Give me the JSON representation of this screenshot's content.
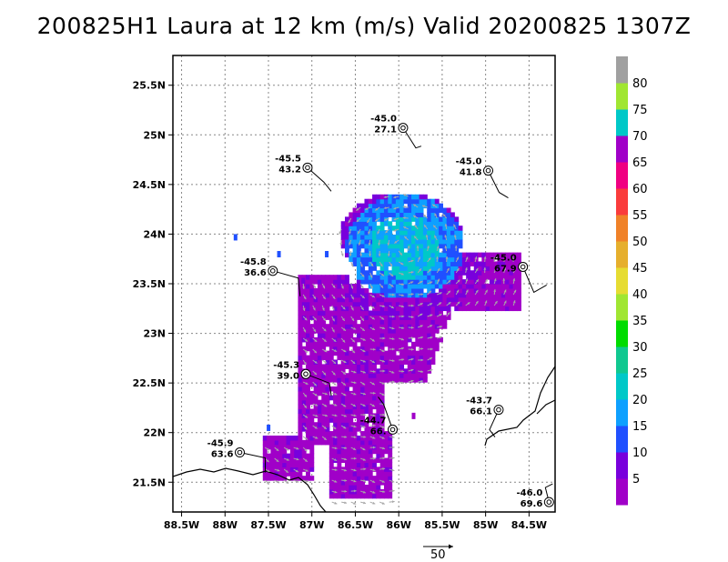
{
  "title": "200825H1 Laura at 12 km (m/s) Valid 20200825 1307Z",
  "chart_data": {
    "type": "heatmap",
    "title": "200825H1 Laura at 12 km (m/s) Valid 20200825 1307Z",
    "units": "m/s",
    "xlim": [
      -88.6,
      -84.2
    ],
    "ylim": [
      21.2,
      25.8
    ],
    "x_ticks": [
      -88.5,
      -88,
      -87.5,
      -87,
      -86.5,
      -86,
      -85.5,
      -85,
      -84.5
    ],
    "x_tick_labels": [
      "88.5W",
      "88W",
      "87.5W",
      "87W",
      "86.5W",
      "86W",
      "85.5W",
      "85W",
      "84.5W"
    ],
    "y_ticks": [
      21.5,
      22,
      22.5,
      23,
      23.5,
      24,
      24.5,
      25,
      25.5
    ],
    "y_tick_labels": [
      "21.5N",
      "22N",
      "22.5N",
      "23N",
      "23.5N",
      "24N",
      "24.5N",
      "25N",
      "25.5N"
    ],
    "grid": true,
    "colorbar": {
      "labels": [
        "5",
        "10",
        "15",
        "20",
        "25",
        "30",
        "35",
        "40",
        "45",
        "50",
        "55",
        "60",
        "65",
        "70",
        "75",
        "80"
      ],
      "colors": [
        "#a000c8",
        "#7800dc",
        "#2050ff",
        "#0ea0ff",
        "#00c8c8",
        "#10c890",
        "#00dc00",
        "#a0e632",
        "#e6dc32",
        "#e6af2d",
        "#f08228",
        "#fa3c3c",
        "#f00082",
        "#a000c8",
        "#00c8c8",
        "#a0e632",
        "#a0a0a0"
      ]
    },
    "reference_vector": {
      "label": "50",
      "value": 50
    },
    "sondes": [
      {
        "lon": -85.95,
        "lat": 25.07,
        "pressure": "-45.0",
        "wind": "27.1"
      },
      {
        "lon": -87.05,
        "lat": 24.67,
        "pressure": "-45.5",
        "wind": "43.2"
      },
      {
        "lon": -84.97,
        "lat": 24.64,
        "pressure": "-45.0",
        "wind": "41.8"
      },
      {
        "lon": -87.45,
        "lat": 23.63,
        "pressure": "-45.8",
        "wind": "36.6"
      },
      {
        "lon": -84.57,
        "lat": 23.67,
        "pressure": "-45.0",
        "wind": "67.9"
      },
      {
        "lon": -87.07,
        "lat": 22.59,
        "pressure": "-45.3",
        "wind": "39.0"
      },
      {
        "lon": -86.07,
        "lat": 22.03,
        "pressure": "-44.7",
        "wind": "66."
      },
      {
        "lon": -84.85,
        "lat": 22.23,
        "pressure": "-43.7",
        "wind": "66.1"
      },
      {
        "lon": -87.83,
        "lat": 21.8,
        "pressure": "-45.9",
        "wind": "63.6"
      },
      {
        "lon": -84.27,
        "lat": 21.3,
        "pressure": "-46.0",
        "wind": "69.6"
      }
    ]
  }
}
